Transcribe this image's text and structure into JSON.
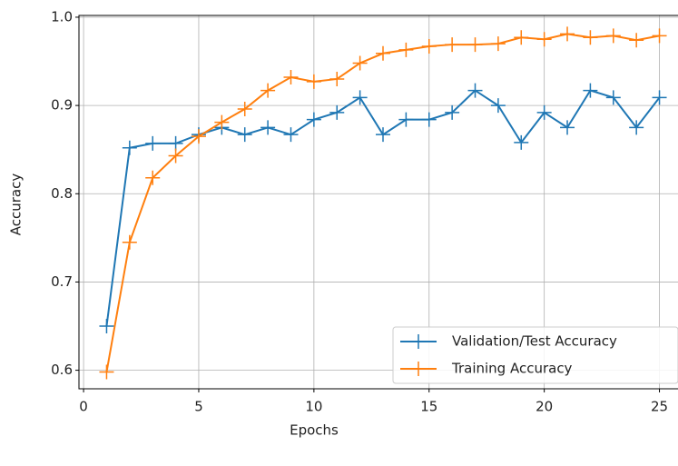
{
  "chart_data": {
    "type": "line",
    "x_label": "Epochs",
    "y_label": "Accuracy",
    "x": [
      1,
      2,
      3,
      4,
      5,
      6,
      7,
      8,
      9,
      10,
      11,
      12,
      13,
      14,
      15,
      16,
      17,
      18,
      19,
      20,
      21,
      22,
      23,
      24,
      25
    ],
    "series": [
      {
        "name": "Validation/Test Accuracy",
        "color": "#1f77b4",
        "values": [
          0.65,
          0.852,
          0.857,
          0.857,
          0.867,
          0.875,
          0.867,
          0.875,
          0.867,
          0.884,
          0.892,
          0.909,
          0.867,
          0.884,
          0.884,
          0.892,
          0.917,
          0.9,
          0.858,
          0.892,
          0.875,
          0.917,
          0.909,
          0.875,
          0.909
        ]
      },
      {
        "name": "Training Accuracy",
        "color": "#ff7f0e",
        "values": [
          0.598,
          0.745,
          0.818,
          0.843,
          0.865,
          0.881,
          0.896,
          0.917,
          0.932,
          0.927,
          0.93,
          0.948,
          0.959,
          0.963,
          0.967,
          0.969,
          0.969,
          0.97,
          0.977,
          0.975,
          0.981,
          0.977,
          0.979,
          0.974,
          0.979
        ]
      }
    ],
    "xlim": [
      -0.2,
      26.2
    ],
    "xticks": [
      0,
      5,
      10,
      15,
      20,
      25
    ],
    "ylim": [
      0.579,
      1.002
    ],
    "yticks": [
      0.6,
      0.7,
      0.8,
      0.9,
      {
        "value": 1,
        "label": "1.0"
      }
    ],
    "grid": true,
    "legend": "lower right"
  }
}
